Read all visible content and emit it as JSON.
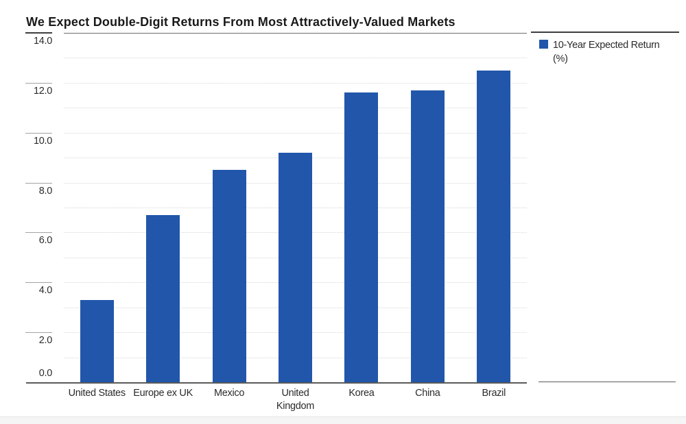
{
  "title": "We Expect Double-Digit Returns From Most Attractively-Valued Markets",
  "legend": {
    "swatch_color": "#2156ab",
    "label_line1": "10-Year Expected Return",
    "label_line2": "(%)"
  },
  "chart_data": {
    "type": "bar",
    "title": "We Expect Double-Digit Returns From Most Attractively-Valued Markets",
    "series_name": "10-Year Expected Return (%)",
    "categories": [
      "United States",
      "Europe ex UK",
      "Mexico",
      "United Kingdom",
      "Korea",
      "China",
      "Brazil"
    ],
    "values": [
      3.3,
      6.7,
      8.5,
      9.2,
      11.6,
      11.7,
      12.5
    ],
    "xlabel": "",
    "ylabel": "10-Year Expected Return (%)",
    "ylim": [
      0,
      14
    ],
    "ytick_step": 2,
    "ytick_labels": [
      "0.0",
      "2.0",
      "4.0",
      "6.0",
      "8.0",
      "10.0",
      "12.0",
      "14.0"
    ],
    "gridline_step": 1,
    "grid": "horizontal-dotted",
    "bar_color": "#2156ab",
    "legend_position": "top-right"
  }
}
